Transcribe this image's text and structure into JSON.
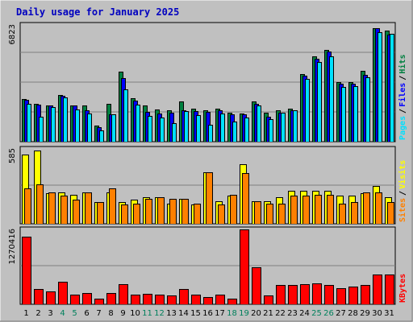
{
  "chart_data": {
    "type": "bar",
    "title": "Daily usage for January 2025",
    "categories": [
      "1",
      "2",
      "3",
      "4",
      "5",
      "6",
      "7",
      "8",
      "9",
      "10",
      "11",
      "12",
      "13",
      "14",
      "15",
      "16",
      "17",
      "18",
      "19",
      "20",
      "21",
      "22",
      "23",
      "24",
      "25",
      "26",
      "27",
      "28",
      "29",
      "30",
      "31"
    ],
    "weekend_days": [
      4,
      5,
      11,
      12,
      18,
      19,
      25,
      26
    ],
    "colors": {
      "hits": "#008040",
      "files": "#0000ff",
      "pages": "#00e0ff",
      "visits": "#ffff00",
      "sites": "#ff8000",
      "kbytes": "#ff0000",
      "weekday": "#000000",
      "weekend": "#00805c",
      "title": "#0000c0"
    },
    "panels": [
      {
        "name": "hits-files-pages",
        "max_label": "6823",
        "legend": [
          "Pages",
          "Files",
          "Hits"
        ],
        "ylim": [
          0,
          6823
        ],
        "series": [
          {
            "name": "Hits",
            "key": "hits",
            "values": [
              2500,
              2250,
              2150,
              2750,
              2150,
              2150,
              950,
              2250,
              4100,
              2550,
              2150,
              1900,
              1850,
              2350,
              1950,
              1850,
              1950,
              1700,
              1650,
              2350,
              1700,
              1850,
              1950,
              4000,
              5000,
              5400,
              3500,
              3500,
              4150,
              6700,
              6550
            ]
          },
          {
            "name": "Files",
            "key": "files",
            "values": [
              2450,
              2200,
              2150,
              2700,
              2150,
              1850,
              850,
              1600,
              3750,
              2400,
              1750,
              1650,
              1700,
              1850,
              1800,
              1750,
              1850,
              1600,
              1600,
              2250,
              1450,
              1700,
              1850,
              3900,
              4900,
              5300,
              3400,
              3400,
              3950,
              6700,
              6300
            ]
          },
          {
            "name": "Pages",
            "key": "pages",
            "values": [
              2250,
              1450,
              2050,
              2600,
              1900,
              1650,
              650,
              1600,
              3100,
              2200,
              1500,
              1400,
              1100,
              1800,
              1550,
              1000,
              1650,
              1200,
              1400,
              2150,
              1350,
              1700,
              1850,
              3700,
              4700,
              5000,
              3200,
              3250,
              3800,
              6450,
              6350
            ]
          }
        ]
      },
      {
        "name": "visits-sites",
        "max_label": "585",
        "legend": [
          "Sites",
          "/",
          "Visits"
        ],
        "ylim": [
          0,
          585
        ],
        "series": [
          {
            "name": "Visits",
            "key": "visits",
            "values": [
              550,
              580,
              240,
              250,
              230,
              250,
              170,
              250,
              170,
              190,
              210,
              210,
              160,
              200,
              150,
              410,
              180,
              220,
              470,
              180,
              180,
              210,
              260,
              260,
              260,
              260,
              220,
              220,
              240,
              300,
              210
            ]
          },
          {
            "name": "Sites",
            "key": "sites",
            "values": [
              280,
              310,
              250,
              220,
              190,
              250,
              170,
              280,
              150,
              160,
              200,
              210,
              200,
              200,
              160,
              410,
              150,
              230,
              400,
              180,
              160,
              160,
              220,
              220,
              230,
              230,
              160,
              170,
              250,
              250,
              170
            ]
          }
        ]
      },
      {
        "name": "kbytes",
        "max_label": "1270416",
        "legend": [
          "KBytes"
        ],
        "ylim": [
          0,
          1270416
        ],
        "series": [
          {
            "name": "KBytes",
            "key": "kbytes",
            "values": [
              1160000,
              260000,
              220000,
              380000,
              170000,
              190000,
              100000,
              200000,
              350000,
              170000,
              180000,
              170000,
              150000,
              260000,
              160000,
              130000,
              170000,
              100000,
              1290000,
              640000,
              150000,
              330000,
              330000,
              340000,
              360000,
              330000,
              270000,
              300000,
              330000,
              510000,
              510000
            ]
          }
        ]
      }
    ]
  }
}
